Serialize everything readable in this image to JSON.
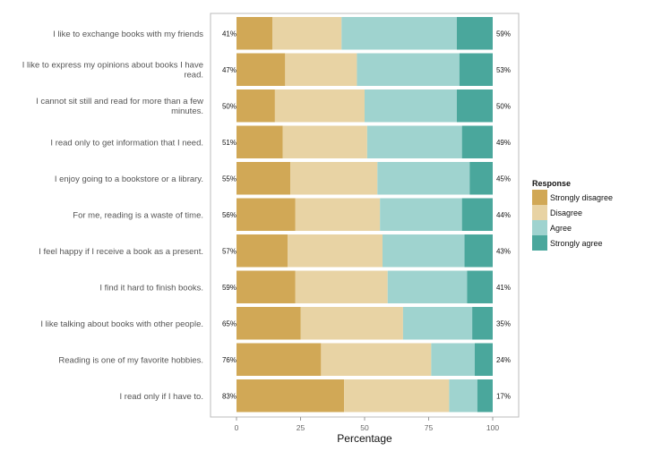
{
  "chart_data": {
    "type": "bar",
    "orientation": "horizontal",
    "stacked": true,
    "xlabel": "Percentage",
    "ylabel": "",
    "xlim": [
      0,
      100
    ],
    "xticks": [
      0,
      25,
      50,
      75,
      100
    ],
    "legend": {
      "title": "Response",
      "placement": "right"
    },
    "grid": false,
    "categories": [
      "I like to exchange books with my friends",
      "I like to express my opinions about books I have read.",
      "I cannot sit still and read for more than a few minutes.",
      "I read only to get information that I need.",
      "I enjoy going to a bookstore or a library.",
      "For me, reading is a waste of time.",
      "I feel happy if I receive a book as a present.",
      "I find it hard to finish books.",
      "I like talking about books with other people.",
      "Reading is one of my favorite hobbies.",
      "I read only if I have to."
    ],
    "category_lines": [
      [
        "I like to exchange books with my friends"
      ],
      [
        "I like to express my opinions about books I have",
        "read."
      ],
      [
        "I cannot sit still and read for more than a few",
        "minutes."
      ],
      [
        "I read only to get information that I need."
      ],
      [
        "I enjoy going to a bookstore or a library."
      ],
      [
        "For me, reading is a waste of time."
      ],
      [
        "I feel happy if I receive a book as a present."
      ],
      [
        "I find it hard to finish books."
      ],
      [
        "I like talking about books with other people."
      ],
      [
        "Reading is one of my favorite hobbies."
      ],
      [
        "I read only if I have to."
      ]
    ],
    "series": [
      {
        "name": "Strongly disagree",
        "color": "#d1a856",
        "values": [
          14,
          19,
          15,
          18,
          21,
          23,
          20,
          23,
          25,
          33,
          42
        ]
      },
      {
        "name": "Disagree",
        "color": "#e8d3a4",
        "values": [
          27,
          28,
          35,
          33,
          34,
          33,
          37,
          36,
          40,
          43,
          41
        ]
      },
      {
        "name": "Agree",
        "color": "#9fd3cf",
        "values": [
          45,
          40,
          36,
          37,
          36,
          32,
          32,
          31,
          27,
          17,
          11
        ]
      },
      {
        "name": "Strongly agree",
        "color": "#4aa79c",
        "values": [
          14,
          13,
          14,
          12,
          9,
          12,
          11,
          10,
          8,
          7,
          6
        ]
      }
    ],
    "left_labels": [
      "41%",
      "47%",
      "50%",
      "51%",
      "55%",
      "56%",
      "57%",
      "59%",
      "65%",
      "76%",
      "83%"
    ],
    "right_labels": [
      "59%",
      "53%",
      "50%",
      "49%",
      "45%",
      "44%",
      "43%",
      "41%",
      "35%",
      "24%",
      "17%"
    ]
  }
}
